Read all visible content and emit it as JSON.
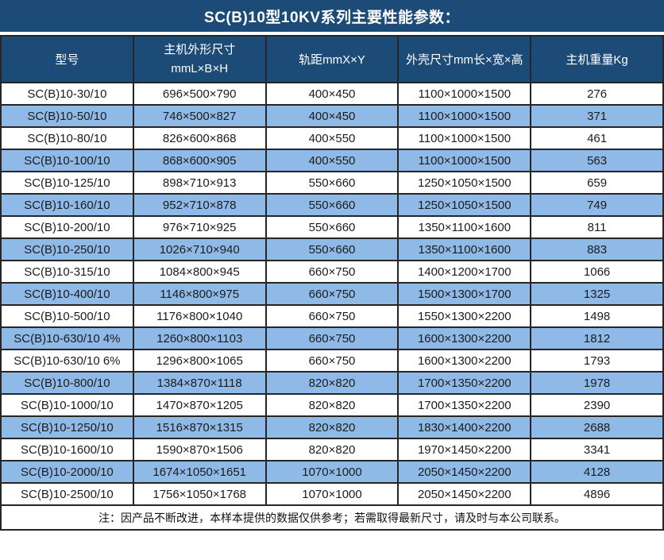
{
  "title": "SC(B)10型10KV系列主要性能参数：",
  "headers": {
    "col1": "型号",
    "col2_line1": "主机外形尺寸",
    "col2_line2": "mmL×B×H",
    "col3": "轨距mmX×Y",
    "col4": "外壳尺寸mm长×宽×高",
    "col5": "主机重量Kg"
  },
  "chart_data": {
    "type": "table",
    "title": "SC(B)10型10KV系列主要性能参数：",
    "columns": [
      "型号",
      "主机外形尺寸 mmL×B×H",
      "轨距mmX×Y",
      "外壳尺寸mm长×宽×高",
      "主机重量Kg"
    ],
    "rows": [
      [
        "SC(B)10-30/10",
        "696×500×790",
        "400×450",
        "1100×1000×1500",
        "276"
      ],
      [
        "SC(B)10-50/10",
        "746×500×827",
        "400×450",
        "1100×1000×1500",
        "371"
      ],
      [
        "SC(B)10-80/10",
        "826×600×868",
        "400×550",
        "1100×1000×1500",
        "461"
      ],
      [
        "SC(B)10-100/10",
        "868×600×905",
        "400×550",
        "1100×1000×1500",
        "563"
      ],
      [
        "SC(B)10-125/10",
        "898×710×913",
        "550×660",
        "1250×1050×1500",
        "659"
      ],
      [
        "SC(B)10-160/10",
        "952×710×878",
        "550×660",
        "1250×1050×1500",
        "749"
      ],
      [
        "SC(B)10-200/10",
        "976×710×925",
        "550×660",
        "1350×1100×1600",
        "811"
      ],
      [
        "SC(B)10-250/10",
        "1026×710×940",
        "550×660",
        "1350×1100×1600",
        "883"
      ],
      [
        "SC(B)10-315/10",
        "1084×800×945",
        "660×750",
        "1400×1200×1700",
        "1066"
      ],
      [
        "SC(B)10-400/10",
        "1146×800×975",
        "660×750",
        "1500×1300×1700",
        "1325"
      ],
      [
        "SC(B)10-500/10",
        "1176×800×1040",
        "660×750",
        "1550×1300×2200",
        "1498"
      ],
      [
        "SC(B)10-630/10 4%",
        "1260×800×1103",
        "660×750",
        "1600×1300×2200",
        "1812"
      ],
      [
        "SC(B)10-630/10 6%",
        "1296×800×1065",
        "660×750",
        "1600×1300×2200",
        "1793"
      ],
      [
        "SC(B)10-800/10",
        "1384×870×1118",
        "820×820",
        "1700×1350×2200",
        "1978"
      ],
      [
        "SC(B)10-1000/10",
        "1470×870×1205",
        "820×820",
        "1700×1350×2200",
        "2390"
      ],
      [
        "SC(B)10-1250/10",
        "1516×870×1315",
        "820×820",
        "1830×1400×2200",
        "2688"
      ],
      [
        "SC(B)10-1600/10",
        "1590×870×1506",
        "820×820",
        "1970×1450×2200",
        "3341"
      ],
      [
        "SC(B)10-2000/10",
        "1674×1050×1651",
        "1070×1000",
        "2050×1450×2200",
        "4128"
      ],
      [
        "SC(B)10-2500/10",
        "1756×1050×1768",
        "1070×1000",
        "2050×1450×2200",
        "4896"
      ]
    ]
  },
  "footer": {
    "note": "注：因产品不断改进，本样本提供的数据仅供参考；若需取得最新尺寸，请及时与本公司联系。"
  },
  "colors": {
    "header_bg": "#1D4B77",
    "stripe": "#8FB9E6",
    "border": "#262626",
    "header_text": "#FFFFFF",
    "cell_text": "#1C1C1C"
  }
}
